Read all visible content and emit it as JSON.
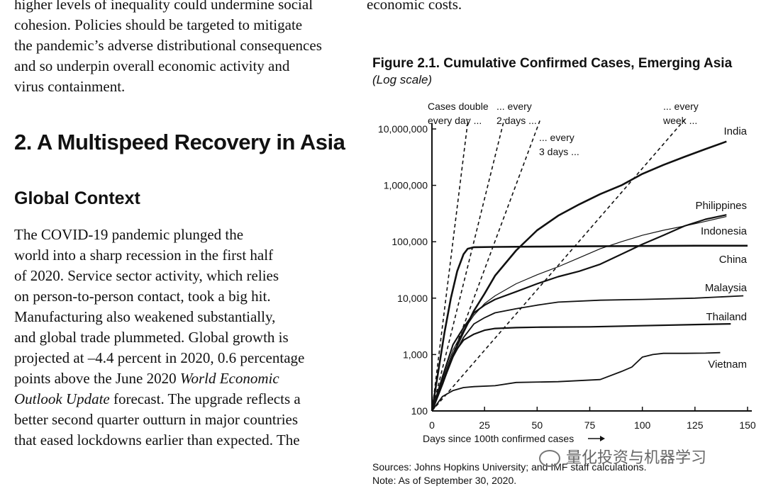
{
  "left_column": {
    "top_paragraph": [
      "higher levels of inequality could undermine social",
      "cohesion. Policies should be targeted to mitigate",
      "the pandemic’s adverse distributional consequences",
      "and so underpin overall economic activity and",
      "virus containment."
    ],
    "section_heading": "2. A Multispeed Recovery in Asia",
    "subsection_heading": "Global Context",
    "body_lines": [
      "The COVID-19 pandemic plunged the",
      "world into a sharp recession in the first half",
      "of 2020. Service sector activity, which relies",
      "on person-to-person contact, took a big hit.",
      "Manufacturing also weakened substantially,",
      "and global trade plummeted. Global growth is",
      "projected at –4.4 percent in 2020, 0.6 percentage",
      "points above the June 2020 ",
      "forecast. The upgrade reflects a",
      "better second quarter outturn in major countries",
      "that eased lockdowns earlier than expected. The"
    ],
    "italic_ref_a": "World Economic",
    "italic_ref_b": "Outlook Update"
  },
  "right_column": {
    "top_fragment": "economic costs."
  },
  "figure": {
    "title": "Figure 2.1. Cumulative Confirmed Cases, Emerging Asia",
    "subtitle": "(Log scale)",
    "sources": "Sources: Johns Hopkins University; and IMF staff calculations.",
    "note": "Note: As of September 30, 2020."
  },
  "watermark": "量化投资与机器学习",
  "chart_data": {
    "type": "line",
    "xlabel": "Days since 100th confirmed cases",
    "ylabel": "",
    "xlim": [
      0,
      150
    ],
    "ylim": [
      100,
      10000000
    ],
    "yscale": "log",
    "x_ticks": [
      0,
      25,
      50,
      75,
      100,
      125,
      150
    ],
    "y_ticks": [
      100,
      1000,
      10000,
      100000,
      1000000,
      10000000
    ],
    "y_tick_labels": [
      "100",
      "1,000",
      "10,000",
      "100,000",
      "1,000,000",
      "10,000,000"
    ],
    "series": [
      {
        "name": "India",
        "x": [
          0,
          5,
          10,
          15,
          20,
          25,
          30,
          40,
          50,
          60,
          70,
          80,
          90,
          100,
          110,
          120,
          130,
          140
        ],
        "y": [
          100,
          300,
          1000,
          2500,
          6000,
          12000,
          25000,
          70000,
          160000,
          290000,
          460000,
          700000,
          1000000,
          1600000,
          2300000,
          3200000,
          4400000,
          6000000
        ]
      },
      {
        "name": "Philippines",
        "x": [
          0,
          5,
          10,
          15,
          20,
          25,
          30,
          40,
          50,
          60,
          70,
          80,
          90,
          100,
          110,
          120,
          130,
          140
        ],
        "y": [
          100,
          400,
          1500,
          3000,
          5500,
          7500,
          9500,
          13000,
          18000,
          24000,
          30000,
          40000,
          60000,
          90000,
          130000,
          190000,
          250000,
          300000
        ]
      },
      {
        "name": "Indonesia",
        "x": [
          0,
          5,
          10,
          15,
          20,
          25,
          30,
          40,
          50,
          60,
          70,
          80,
          90,
          100,
          110,
          120,
          130,
          140
        ],
        "y": [
          100,
          350,
          1200,
          2700,
          5000,
          8000,
          11000,
          18000,
          26000,
          36000,
          52000,
          75000,
          100000,
          130000,
          160000,
          190000,
          230000,
          280000
        ]
      },
      {
        "name": "China",
        "x": [
          0,
          3,
          6,
          9,
          12,
          15,
          17,
          20,
          30,
          50,
          75,
          100,
          125,
          150
        ],
        "y": [
          100,
          500,
          2500,
          10000,
          30000,
          60000,
          75000,
          80000,
          81000,
          82000,
          83000,
          84000,
          85000,
          85000
        ]
      },
      {
        "name": "Malaysia",
        "x": [
          0,
          5,
          10,
          15,
          20,
          25,
          30,
          40,
          50,
          60,
          80,
          100,
          125,
          148
        ],
        "y": [
          100,
          300,
          900,
          2000,
          3500,
          4500,
          5500,
          6500,
          7500,
          8500,
          9200,
          9500,
          10000,
          11000
        ]
      },
      {
        "name": "Thailand",
        "x": [
          0,
          5,
          10,
          15,
          20,
          25,
          30,
          40,
          50,
          75,
          100,
          125,
          142
        ],
        "y": [
          100,
          300,
          1000,
          1800,
          2300,
          2700,
          2900,
          3000,
          3050,
          3100,
          3250,
          3400,
          3500
        ]
      },
      {
        "name": "Vietnam",
        "x": [
          0,
          5,
          10,
          15,
          20,
          30,
          40,
          60,
          80,
          90,
          95,
          100,
          105,
          110,
          120,
          130,
          137
        ],
        "y": [
          100,
          180,
          230,
          260,
          270,
          280,
          320,
          330,
          360,
          500,
          600,
          900,
          1000,
          1050,
          1050,
          1060,
          1080
        ]
      }
    ],
    "reference_lines": [
      {
        "label": "Cases double every day ...",
        "doubling_days": 1
      },
      {
        "label": "... every 2 days ...",
        "doubling_days": 2
      },
      {
        "label": "... every 3 days ...",
        "doubling_days": 3
      },
      {
        "label": "... every week ...",
        "doubling_days": 7
      }
    ],
    "reference_label_lines": [
      [
        "Cases double",
        "every day ..."
      ],
      [
        "... every",
        "2 days ..."
      ],
      [
        "... every",
        "3 days ..."
      ],
      [
        "... every",
        "week ..."
      ]
    ],
    "series_label_text": {
      "India": "India",
      "Philippines": "Philippines",
      "Indonesia": "Indonesia",
      "China": "China",
      "Malaysia": "Malaysia",
      "Thailand": "Thailand",
      "Vietnam": "Vietnam"
    }
  }
}
